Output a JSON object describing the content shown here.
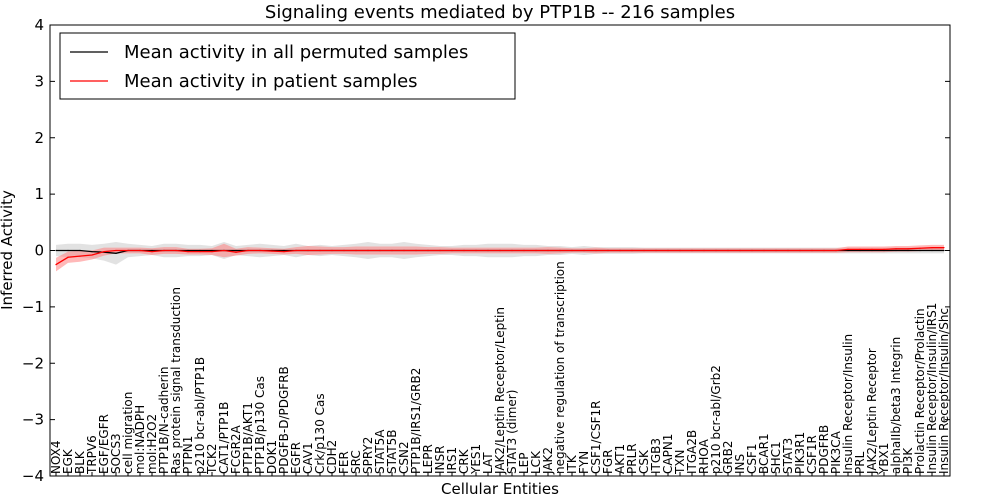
{
  "chart_data": {
    "type": "line",
    "title": "Signaling events mediated by PTP1B -- 216 samples",
    "xlabel": "Cellular Entities",
    "ylabel": "Inferred Activity",
    "ylim": [
      -4,
      4
    ],
    "yticks": [
      -4,
      -3,
      -2,
      -1,
      0,
      1,
      2,
      3,
      4
    ],
    "ytick_labels": [
      "−4",
      "−3",
      "−2",
      "−1",
      "0",
      "1",
      "2",
      "3",
      "4"
    ],
    "grid": false,
    "legend_position": "top-left",
    "categories": [
      "NOX4",
      "EGK",
      "BLK",
      "TRPV6",
      "EGF/EGFR",
      "SOCS3",
      "cell migration",
      "mol:NADPH",
      "mol:H2O2",
      "PTP1B/N-cadherin",
      "Ras protein signal transduction",
      "PTPN1",
      "p210 bcr-abl/PTP1B",
      "TCK2",
      "CAT1/PTP1B",
      "FCGR2A",
      "PTP1B/AKT1",
      "PTP1B/p130 Cas",
      "DOK1",
      "PDGFB-D/PDGFRB",
      "EGFR",
      "CAV1",
      "Crk/p130 Cas",
      "CDH2",
      "FER",
      "SRC",
      "SPRY2",
      "STAT5A",
      "STAT5B",
      "CSN2",
      "PTP1B/IRS1/GRB2",
      "LEPR",
      "INSR",
      "IRS1",
      "CRK",
      "YES1",
      "LAT",
      "JAK2/Leptin Receptor/Leptin",
      "STAT3 (dimer)",
      "LEP",
      "LCK",
      "JAK2",
      "negative regulation of transcription",
      "ITK",
      "FYN",
      "CSF1/CSF1R",
      "FGR",
      "AKT1",
      "PRLR",
      "CSK",
      "ITGB3",
      "CAPN1",
      "TXN",
      "ITGA2B",
      "RHOA",
      "p210 bcr-abl/Grb2",
      "GRB2",
      "INS",
      "CSF1",
      "BCAR1",
      "SHC1",
      "STAT3",
      "PIK3R1",
      "CSF1R",
      "PDGFRB",
      "PIK3CA",
      "Insulin Receptor/Insulin",
      "PRL",
      "JAK2/Leptin Receptor",
      "YBX1",
      "alphaIIb/beta3 Integrin",
      "PI3K",
      "Prolactin Receptor/Prolactin",
      "Insulin Receptor/Insulin/IRS1",
      "Insulin Receptor/Insulin/Shc"
    ],
    "series": [
      {
        "name": "Mean activity in all permuted samples",
        "color": "#000000",
        "band_color": "#bfbfbf",
        "values": [
          0.0,
          0.0,
          0.0,
          -0.02,
          -0.03,
          -0.05,
          0.0,
          0.0,
          0.0,
          0.0,
          0.0,
          0.0,
          0.0,
          0.0,
          0.0,
          0.0,
          0.0,
          0.0,
          0.0,
          0.0,
          0.0,
          0.0,
          0.0,
          0.0,
          0.0,
          0.0,
          0.0,
          0.0,
          0.0,
          0.0,
          0.0,
          0.0,
          0.0,
          0.0,
          0.0,
          0.0,
          0.0,
          0.0,
          0.0,
          0.0,
          0.0,
          0.0,
          0.0,
          0.0,
          0.0,
          0.0,
          0.0,
          0.0,
          0.0,
          0.0,
          0.0,
          0.0,
          0.0,
          0.0,
          0.0,
          0.0,
          0.0,
          0.0,
          0.0,
          0.0,
          0.0,
          0.0,
          0.0,
          0.0,
          0.0,
          0.0,
          0.0,
          0.0,
          0.0,
          0.0,
          0.0,
          0.0,
          0.0,
          0.0,
          0.0
        ],
        "band": [
          0.1,
          0.12,
          0.12,
          0.12,
          0.15,
          0.2,
          0.12,
          0.1,
          0.08,
          0.12,
          0.12,
          0.1,
          0.1,
          0.08,
          0.15,
          0.08,
          0.1,
          0.12,
          0.1,
          0.08,
          0.12,
          0.08,
          0.1,
          0.08,
          0.1,
          0.12,
          0.15,
          0.12,
          0.12,
          0.15,
          0.12,
          0.1,
          0.08,
          0.08,
          0.1,
          0.1,
          0.12,
          0.12,
          0.12,
          0.1,
          0.1,
          0.08,
          0.08,
          0.06,
          0.08,
          0.06,
          0.06,
          0.06,
          0.06,
          0.05,
          0.05,
          0.05,
          0.05,
          0.05,
          0.05,
          0.05,
          0.05,
          0.05,
          0.05,
          0.05,
          0.05,
          0.05,
          0.05,
          0.05,
          0.05,
          0.05,
          0.05,
          0.05,
          0.05,
          0.05,
          0.05,
          0.05,
          0.05,
          0.05,
          0.05
        ]
      },
      {
        "name": "Mean activity in patient samples",
        "color": "#ff0000",
        "band_color": "#ff8080",
        "values": [
          -0.25,
          -0.12,
          -0.1,
          -0.08,
          -0.02,
          0.0,
          0.0,
          0.0,
          -0.02,
          0.0,
          0.0,
          -0.02,
          -0.02,
          -0.02,
          0.0,
          -0.03,
          0.0,
          0.0,
          -0.01,
          -0.02,
          0.0,
          0.0,
          0.0,
          0.0,
          0.0,
          0.0,
          0.0,
          0.0,
          0.0,
          0.0,
          0.0,
          0.0,
          0.0,
          0.0,
          0.0,
          0.0,
          0.0,
          0.0,
          0.0,
          0.0,
          0.0,
          0.0,
          0.0,
          0.0,
          0.0,
          0.0,
          0.0,
          0.0,
          0.0,
          0.0,
          0.0,
          0.0,
          0.0,
          0.0,
          0.0,
          0.0,
          0.0,
          0.0,
          0.0,
          0.0,
          0.0,
          0.0,
          0.0,
          0.0,
          0.0,
          0.0,
          0.02,
          0.02,
          0.02,
          0.02,
          0.03,
          0.03,
          0.04,
          0.05,
          0.05
        ],
        "band": [
          0.12,
          0.1,
          0.1,
          0.08,
          0.07,
          0.05,
          0.05,
          0.05,
          0.06,
          0.06,
          0.06,
          0.05,
          0.05,
          0.06,
          0.12,
          0.06,
          0.06,
          0.05,
          0.05,
          0.05,
          0.06,
          0.08,
          0.07,
          0.06,
          0.06,
          0.07,
          0.07,
          0.07,
          0.07,
          0.07,
          0.07,
          0.06,
          0.06,
          0.05,
          0.05,
          0.05,
          0.05,
          0.05,
          0.05,
          0.05,
          0.05,
          0.06,
          0.05,
          0.04,
          0.04,
          0.05,
          0.04,
          0.04,
          0.04,
          0.04,
          0.04,
          0.04,
          0.04,
          0.04,
          0.04,
          0.04,
          0.04,
          0.04,
          0.04,
          0.04,
          0.04,
          0.04,
          0.04,
          0.04,
          0.04,
          0.04,
          0.05,
          0.05,
          0.05,
          0.05,
          0.05,
          0.05,
          0.05,
          0.05,
          0.05
        ]
      }
    ]
  }
}
